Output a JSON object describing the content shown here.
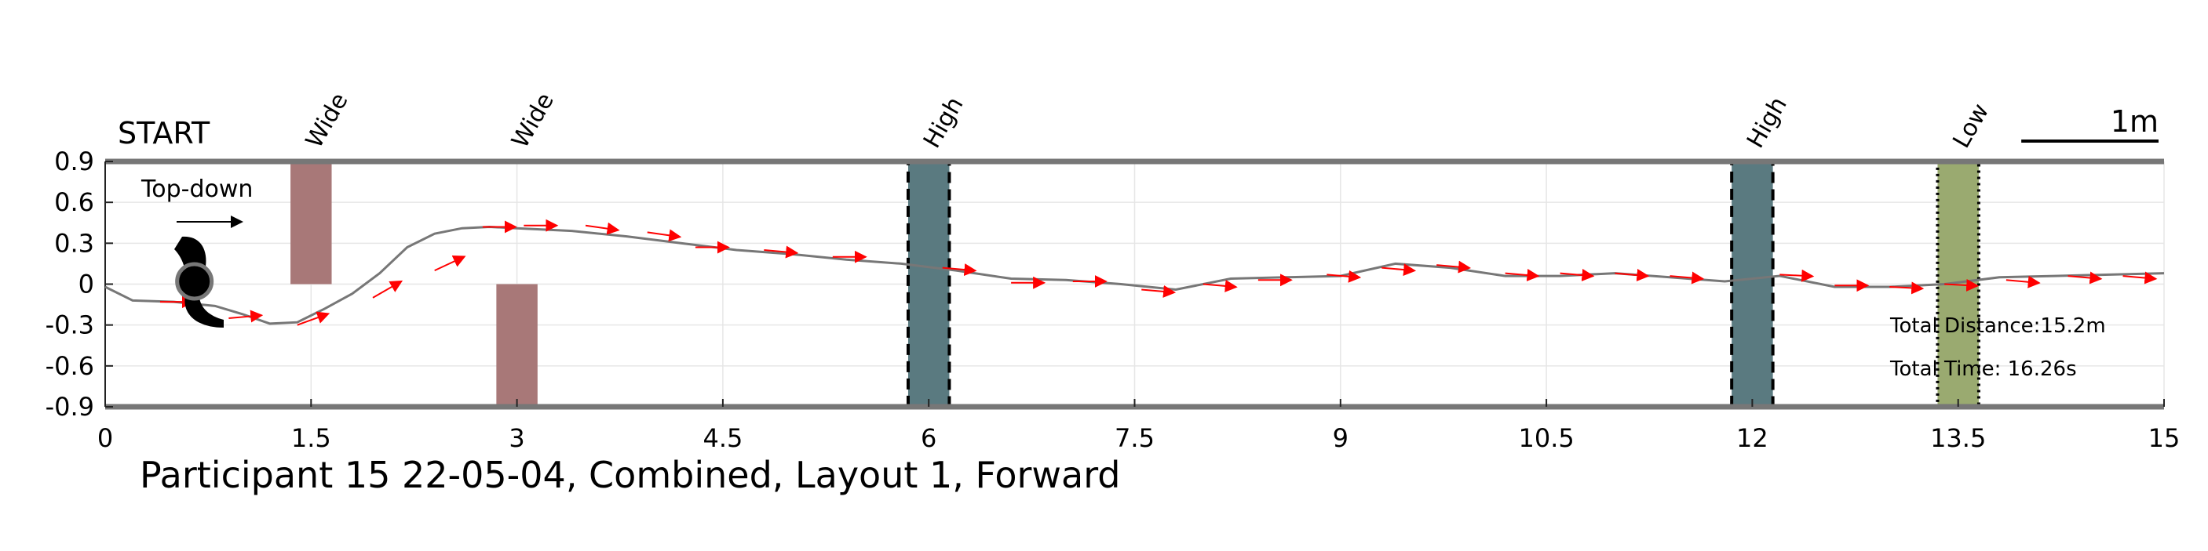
{
  "chart_data": {
    "type": "line",
    "title": "Participant 15 22-05-04, Combined, Layout 1, Forward",
    "xlim": [
      0,
      15
    ],
    "ylim": [
      -0.9,
      0.9
    ],
    "x_ticks": [
      0,
      1.5,
      3,
      4.5,
      6,
      7.5,
      9,
      10.5,
      12,
      13.5,
      15
    ],
    "x_tick_labels": [
      "0",
      "1.5",
      "3",
      "4.5",
      "6",
      "7.5",
      "9",
      "10.5",
      "12",
      "13.5",
      "15"
    ],
    "y_ticks": [
      0.9,
      0.6,
      0.3,
      0,
      -0.3,
      -0.6,
      -0.9
    ],
    "y_tick_labels": [
      "0.9",
      "0.6",
      "0.3",
      "0",
      "-0.3",
      "-0.6",
      "-0.9"
    ],
    "grid": true,
    "start_label": "START",
    "direction_label": "Top-down",
    "scale_bar_label": "1m",
    "scale_bar_length": 1,
    "annotations": {
      "total_distance": "Total Distance:15.2m",
      "total_time": "Total Time: 16.26s"
    },
    "start_marker": {
      "x": 0.65,
      "y": 0.02
    },
    "obstacles": [
      {
        "label": "Wide",
        "x_center": 1.5,
        "width": 0.3,
        "y_range": [
          0,
          0.9
        ],
        "color": "#a87878"
      },
      {
        "label": "Wide",
        "x_center": 3.0,
        "width": 0.3,
        "y_range": [
          -0.9,
          0
        ],
        "color": "#a87878"
      },
      {
        "label": "High",
        "x_center": 6.0,
        "width": 0.3,
        "y_range": [
          -0.9,
          0.9
        ],
        "color": "#5a7a80",
        "border": "dashed"
      },
      {
        "label": "High",
        "x_center": 12.0,
        "width": 0.3,
        "y_range": [
          -0.9,
          0.9
        ],
        "color": "#5a7a80",
        "border": "dashed"
      },
      {
        "label": "Low",
        "x_center": 13.5,
        "width": 0.3,
        "y_range": [
          -0.9,
          0.9
        ],
        "color": "#9aaa70",
        "border": "dotted"
      }
    ],
    "series": [
      {
        "color": "#777777",
        "x": [
          0,
          0.2,
          0.5,
          0.8,
          1.0,
          1.2,
          1.4,
          1.6,
          1.8,
          2.0,
          2.2,
          2.4,
          2.6,
          2.8,
          3.0,
          3.4,
          3.8,
          4.2,
          4.6,
          5.0,
          5.4,
          5.8,
          6.2,
          6.6,
          7.0,
          7.4,
          7.8,
          8.2,
          8.6,
          9.0,
          9.4,
          9.8,
          10.2,
          10.6,
          11.0,
          11.4,
          11.8,
          12.2,
          12.6,
          13.0,
          13.4,
          13.8,
          14.2,
          14.6,
          15.0
        ],
        "y": [
          -0.02,
          -0.12,
          -0.13,
          -0.16,
          -0.22,
          -0.29,
          -0.28,
          -0.18,
          -0.07,
          0.08,
          0.27,
          0.37,
          0.41,
          0.42,
          0.41,
          0.39,
          0.35,
          0.3,
          0.25,
          0.22,
          0.18,
          0.15,
          0.1,
          0.04,
          0.03,
          0.0,
          -0.04,
          0.04,
          0.05,
          0.06,
          0.15,
          0.12,
          0.06,
          0.06,
          0.08,
          0.05,
          0.02,
          0.06,
          -0.02,
          -0.02,
          0.0,
          0.05,
          0.06,
          0.07,
          0.08
        ]
      }
    ],
    "heading_arrows": {
      "color": "#ff0000",
      "points": [
        {
          "x": 0.4,
          "y": -0.13,
          "angle": 0
        },
        {
          "x": 0.9,
          "y": -0.25,
          "angle": -5
        },
        {
          "x": 1.4,
          "y": -0.3,
          "angle": -20
        },
        {
          "x": 1.95,
          "y": -0.1,
          "angle": -30
        },
        {
          "x": 2.4,
          "y": 0.1,
          "angle": -25
        },
        {
          "x": 2.75,
          "y": 0.42,
          "angle": 0
        },
        {
          "x": 3.05,
          "y": 0.43,
          "angle": 0
        },
        {
          "x": 3.5,
          "y": 0.43,
          "angle": 8
        },
        {
          "x": 3.95,
          "y": 0.38,
          "angle": 8
        },
        {
          "x": 4.3,
          "y": 0.27,
          "angle": 0
        },
        {
          "x": 4.8,
          "y": 0.25,
          "angle": 5
        },
        {
          "x": 5.3,
          "y": 0.2,
          "angle": 0
        },
        {
          "x": 6.1,
          "y": 0.12,
          "angle": 5
        },
        {
          "x": 6.6,
          "y": 0.01,
          "angle": 0
        },
        {
          "x": 7.05,
          "y": 0.02,
          "angle": 0
        },
        {
          "x": 7.55,
          "y": -0.04,
          "angle": 5
        },
        {
          "x": 8.0,
          "y": 0.0,
          "angle": 5
        },
        {
          "x": 8.4,
          "y": 0.03,
          "angle": 0
        },
        {
          "x": 8.9,
          "y": 0.07,
          "angle": 5
        },
        {
          "x": 9.3,
          "y": 0.12,
          "angle": 5
        },
        {
          "x": 9.7,
          "y": 0.14,
          "angle": 5
        },
        {
          "x": 10.2,
          "y": 0.08,
          "angle": 5
        },
        {
          "x": 10.6,
          "y": 0.08,
          "angle": 5
        },
        {
          "x": 11.0,
          "y": 0.08,
          "angle": 5
        },
        {
          "x": 11.4,
          "y": 0.06,
          "angle": 5
        },
        {
          "x": 12.2,
          "y": 0.07,
          "angle": 3
        },
        {
          "x": 12.6,
          "y": -0.01,
          "angle": 0
        },
        {
          "x": 13.0,
          "y": -0.02,
          "angle": 3
        },
        {
          "x": 13.4,
          "y": 0.0,
          "angle": 3
        },
        {
          "x": 13.85,
          "y": 0.03,
          "angle": 5
        },
        {
          "x": 14.3,
          "y": 0.06,
          "angle": 5
        },
        {
          "x": 14.7,
          "y": 0.06,
          "angle": 5
        }
      ]
    }
  }
}
